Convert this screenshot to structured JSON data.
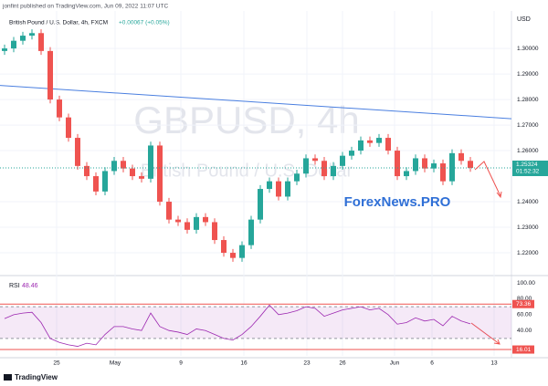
{
  "chart_data": {
    "type": "candlestick",
    "published": "jonfint published on TradingView.com, Jun 09, 2022 11:07 UTC",
    "title": "British Pound / U.S. Dollar, 4h, FXCM",
    "change": "+0.00067 (+0.05%)",
    "watermark": "GBPUSD, 4h",
    "watermark_subtitle": "British Pound / U.S. Dollar",
    "brand": "ForexNews.PRO",
    "currency": "USD",
    "countdown": "01:52:32",
    "footer": "TradingView",
    "up_color": "#26a69a",
    "down_color": "#ef5350",
    "xlim": [
      -0.5,
      55.5
    ],
    "xticks": [
      {
        "value": 5.7,
        "label": "25"
      },
      {
        "value": 12.1,
        "label": "May"
      },
      {
        "value": 19.3,
        "label": "9"
      },
      {
        "value": 26.2,
        "label": "16"
      },
      {
        "value": 33.1,
        "label": "23"
      },
      {
        "value": 37,
        "label": "26"
      },
      {
        "value": 42.7,
        "label": "Jun"
      },
      {
        "value": 46.8,
        "label": "6"
      },
      {
        "value": 53.6,
        "label": "13"
      }
    ],
    "ylim": [
      1.2118,
      1.3136
    ],
    "yticks": [
      {
        "value": 1.22,
        "label": "1.22000"
      },
      {
        "value": 1.23,
        "label": "1.23000"
      },
      {
        "value": 1.24,
        "label": "1.24000"
      },
      {
        "value": 1.26,
        "label": "1.26000"
      },
      {
        "value": 1.27,
        "label": "1.27000"
      },
      {
        "value": 1.28,
        "label": "1.28000"
      },
      {
        "value": 1.29,
        "label": "1.29000"
      },
      {
        "value": 1.3,
        "label": "1.30000"
      }
    ],
    "grid": true,
    "open": [
      1.299,
      1.3,
      1.303,
      1.305,
      1.306,
      1.299,
      1.28,
      1.273,
      1.265,
      1.254,
      1.25,
      1.244,
      1.252,
      1.256,
      1.253,
      1.25,
      1.249,
      1.262,
      1.24,
      1.233,
      1.232,
      1.229,
      1.234,
      1.232,
      1.225,
      1.22,
      1.218,
      1.223,
      1.233,
      1.245,
      1.248,
      1.242,
      1.248,
      1.251,
      1.257,
      1.256,
      1.25,
      1.254,
      1.258,
      1.26,
      1.264,
      1.263,
      1.265,
      1.26,
      1.25,
      1.252,
      1.257,
      1.253,
      1.255,
      1.248,
      1.259,
      1.256
    ],
    "high": [
      1.3015,
      1.3045,
      1.3065,
      1.3075,
      1.3075,
      1.3005,
      1.2815,
      1.2745,
      1.2665,
      1.2555,
      1.2515,
      1.2535,
      1.2575,
      1.2575,
      1.2545,
      1.2515,
      1.2635,
      1.2635,
      1.2415,
      1.2345,
      1.2335,
      1.2355,
      1.2355,
      1.2335,
      1.2265,
      1.2215,
      1.2245,
      1.2345,
      1.2465,
      1.2495,
      1.2495,
      1.2495,
      1.2525,
      1.2585,
      1.2585,
      1.2575,
      1.2555,
      1.2595,
      1.2615,
      1.2655,
      1.2655,
      1.2665,
      1.2665,
      1.2615,
      1.2535,
      1.2585,
      1.2585,
      1.2565,
      1.2565,
      1.2605,
      1.2605,
      1.2575
    ],
    "low": [
      1.2975,
      1.2985,
      1.3015,
      1.3035,
      1.2975,
      1.2785,
      1.2715,
      1.2635,
      1.2525,
      1.2485,
      1.2425,
      1.2425,
      1.2505,
      1.2515,
      1.2485,
      1.2475,
      1.2475,
      1.2385,
      1.2315,
      1.2305,
      1.2275,
      1.2275,
      1.2305,
      1.2235,
      1.2185,
      1.2165,
      1.2165,
      1.2215,
      1.2315,
      1.2435,
      1.2405,
      1.2405,
      1.2465,
      1.2495,
      1.2545,
      1.2485,
      1.2485,
      1.2525,
      1.2565,
      1.2585,
      1.2615,
      1.2615,
      1.2585,
      1.2485,
      1.2485,
      1.2505,
      1.2515,
      1.2515,
      1.2465,
      1.2465,
      1.2545,
      1.2517
    ],
    "close": [
      1.3,
      1.303,
      1.305,
      1.306,
      1.299,
      1.28,
      1.273,
      1.265,
      1.254,
      1.25,
      1.244,
      1.252,
      1.256,
      1.253,
      1.25,
      1.249,
      1.262,
      1.24,
      1.233,
      1.232,
      1.229,
      1.234,
      1.232,
      1.225,
      1.22,
      1.218,
      1.223,
      1.233,
      1.245,
      1.248,
      1.242,
      1.248,
      1.251,
      1.257,
      1.256,
      1.25,
      1.254,
      1.258,
      1.26,
      1.264,
      1.263,
      1.265,
      1.26,
      1.25,
      1.252,
      1.257,
      1.253,
      1.255,
      1.248,
      1.259,
      1.256,
      1.25324
    ],
    "trendline": {
      "color": "#4a7fe0",
      "x": [
        -0.5,
        55.5
      ],
      "y": [
        1.2855,
        1.2725
      ]
    },
    "rsi": {
      "name": "RSI",
      "color": "#9c27b0",
      "ylim": [
        8,
        107
      ],
      "yticks": [
        {
          "value": 100,
          "label": "100.00"
        },
        {
          "value": 80,
          "label": "80.00"
        },
        {
          "value": 60,
          "label": "60.00"
        },
        {
          "value": 40,
          "label": "40.00"
        }
      ],
      "band": [
        70,
        30
      ],
      "levels": [
        73.36,
        16.01
      ],
      "level_color": "#ef5350",
      "values": [
        55,
        60,
        62,
        63,
        50,
        30,
        25,
        22,
        20,
        24,
        22,
        35,
        45,
        45,
        42,
        40,
        62,
        45,
        40,
        38,
        35,
        42,
        40,
        35,
        30,
        28,
        35,
        45,
        58,
        72,
        60,
        62,
        65,
        70,
        68,
        58,
        62,
        66,
        68,
        70,
        66,
        68,
        60,
        48,
        50,
        56,
        52,
        54,
        46,
        58,
        52,
        48.46
      ]
    }
  }
}
